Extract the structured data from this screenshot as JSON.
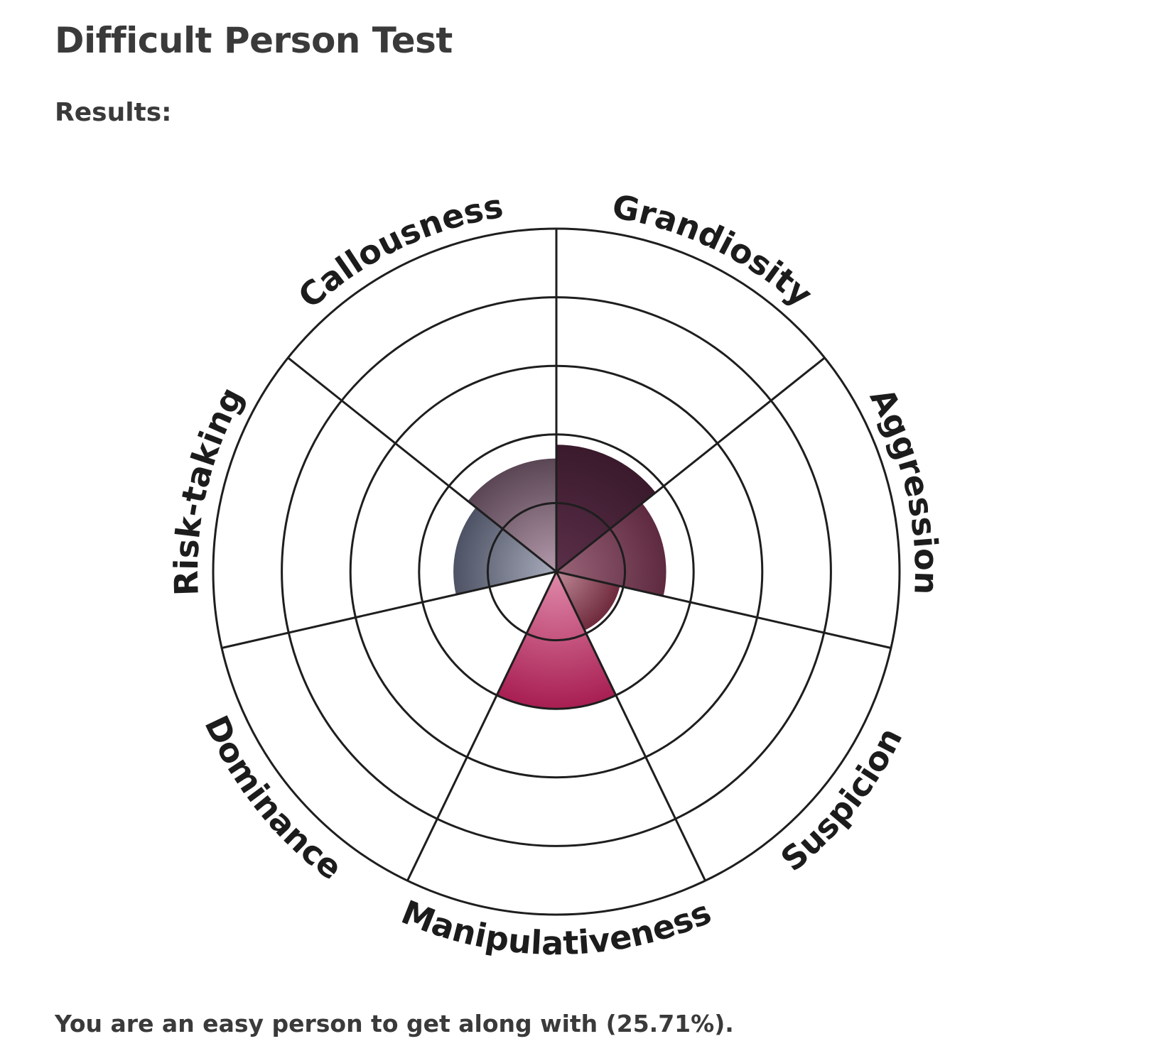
{
  "page": {
    "title": "Difficult Person Test",
    "results_heading": "Results:",
    "summary": "You are an easy person to get along with (25.71%)."
  },
  "chart_data": {
    "type": "radial-bar",
    "title": "",
    "categories": [
      "Grandiosity",
      "Aggression",
      "Suspicion",
      "Manipulativeness",
      "Dominance",
      "Risk-taking",
      "Callousness"
    ],
    "values": [
      37,
      32,
      19,
      40,
      0,
      30,
      33
    ],
    "range": [
      0,
      100
    ],
    "rings": 5,
    "colors": {
      "Grandiosity": [
        "#5b2f49",
        "#3a1a2c"
      ],
      "Aggression": [
        "#9a6478",
        "#5e2a40"
      ],
      "Suspicion": [
        "#c08a98",
        "#6e2a3c"
      ],
      "Manipulativeness": [
        "#e08aaa",
        "#a81e52"
      ],
      "Dominance": [
        "#cccccc",
        "#999999"
      ],
      "Risk-taking": [
        "#a8acbc",
        "#4d5264"
      ],
      "Callousness": [
        "#b49aac",
        "#5a4654"
      ]
    }
  }
}
